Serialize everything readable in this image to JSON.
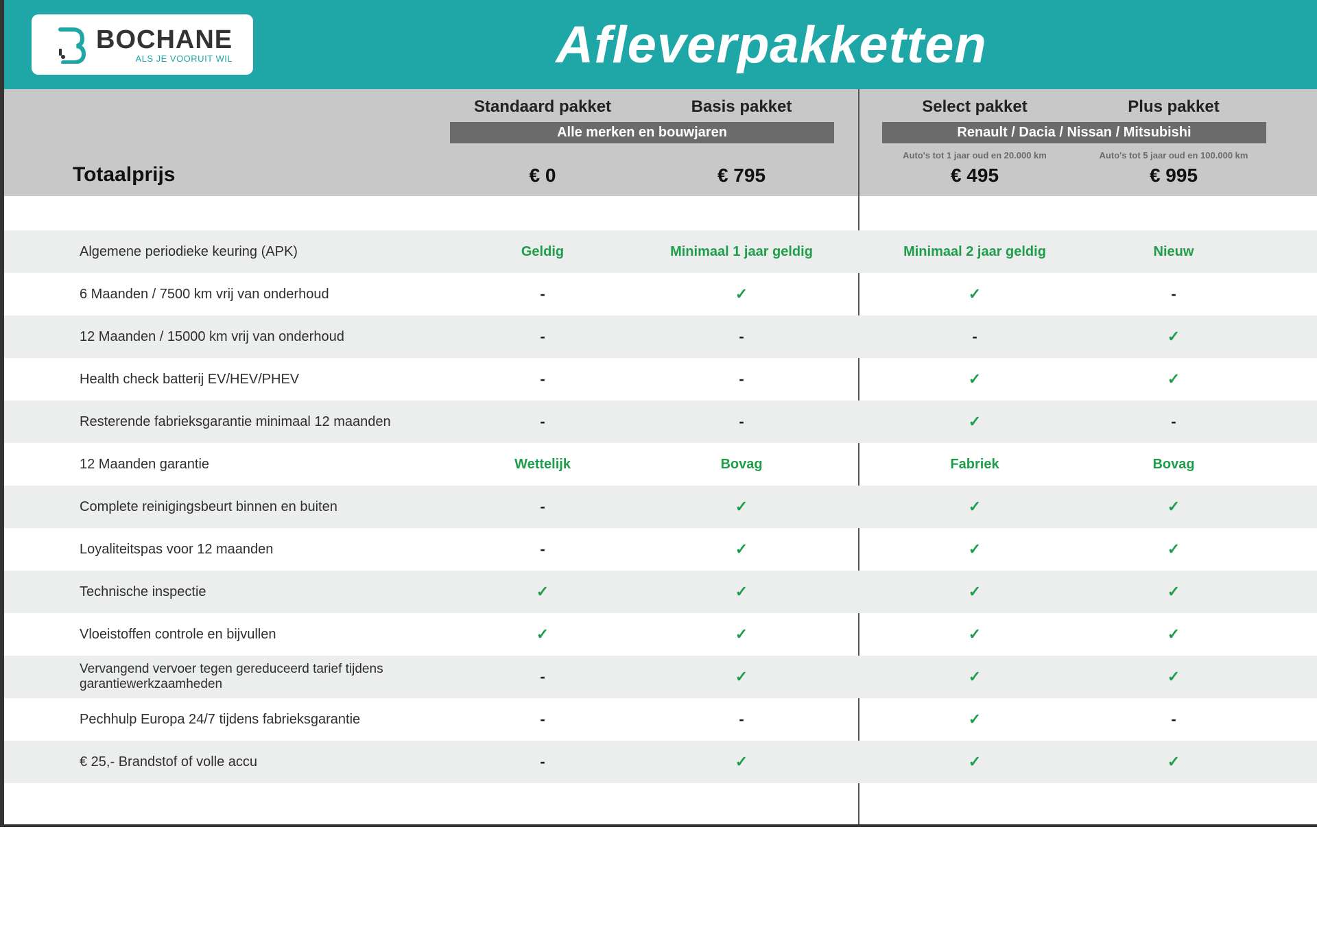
{
  "brand": {
    "name": "BOCHANE",
    "tagline": "ALS JE VOORUIT WIL",
    "accent_color": "#1fa6a6"
  },
  "title": "Afleverpakketten",
  "header_bg": "#1fa6a6",
  "totals_label": "Totaalprijs",
  "columns": [
    {
      "name": "Standaard pakket",
      "price": "€ 0",
      "group": "a",
      "age_note": ""
    },
    {
      "name": "Basis pakket",
      "price": "€ 795",
      "group": "a",
      "age_note": ""
    },
    {
      "name": "Select pakket",
      "price": "€ 495",
      "group": "b",
      "age_note": "Auto's tot 1 jaar oud en 20.000 km"
    },
    {
      "name": "Plus pakket",
      "price": "€ 995",
      "group": "b",
      "age_note": "Auto's tot 5 jaar oud en 100.000 km"
    }
  ],
  "group_a_sub": "Alle merken en bouwjaren",
  "group_b_sub": "Renault / Dacia / Nissan / Mitsubishi",
  "check_color": "#1e9e4a",
  "shade_color": "#eceded",
  "rows": [
    {
      "label": "Algemene periodieke keuring (APK)",
      "shade": true,
      "cells": [
        {
          "t": "text",
          "v": "Geldig"
        },
        {
          "t": "text",
          "v": "Minimaal 1 jaar geldig"
        },
        {
          "t": "text",
          "v": "Minimaal 2 jaar geldig"
        },
        {
          "t": "text",
          "v": "Nieuw"
        }
      ]
    },
    {
      "label": "6 Maanden / 7500 km vrij van onderhoud",
      "shade": false,
      "cells": [
        {
          "t": "dash"
        },
        {
          "t": "check"
        },
        {
          "t": "check"
        },
        {
          "t": "dash"
        }
      ]
    },
    {
      "label": "12 Maanden / 15000 km vrij van onderhoud",
      "shade": true,
      "cells": [
        {
          "t": "dash"
        },
        {
          "t": "dash"
        },
        {
          "t": "dash"
        },
        {
          "t": "check"
        }
      ]
    },
    {
      "label": "Health check batterij EV/HEV/PHEV",
      "shade": false,
      "cells": [
        {
          "t": "dash"
        },
        {
          "t": "dash"
        },
        {
          "t": "check"
        },
        {
          "t": "check"
        }
      ]
    },
    {
      "label": "Resterende fabrieksgarantie minimaal 12 maanden",
      "shade": true,
      "cells": [
        {
          "t": "dash"
        },
        {
          "t": "dash"
        },
        {
          "t": "check"
        },
        {
          "t": "dash"
        }
      ]
    },
    {
      "label": "12 Maanden  garantie",
      "shade": false,
      "cells": [
        {
          "t": "text",
          "v": "Wettelijk"
        },
        {
          "t": "text",
          "v": "Bovag"
        },
        {
          "t": "text",
          "v": "Fabriek"
        },
        {
          "t": "text",
          "v": "Bovag"
        }
      ]
    },
    {
      "label": "Complete reinigingsbeurt binnen en buiten",
      "shade": true,
      "cells": [
        {
          "t": "dash"
        },
        {
          "t": "check"
        },
        {
          "t": "check"
        },
        {
          "t": "check"
        }
      ]
    },
    {
      "label": "Loyaliteitspas voor 12 maanden",
      "shade": false,
      "cells": [
        {
          "t": "dash"
        },
        {
          "t": "check"
        },
        {
          "t": "check"
        },
        {
          "t": "check"
        }
      ]
    },
    {
      "label": "Technische inspectie",
      "shade": true,
      "cells": [
        {
          "t": "check"
        },
        {
          "t": "check"
        },
        {
          "t": "check"
        },
        {
          "t": "check"
        }
      ]
    },
    {
      "label": "Vloeistoffen controle en bijvullen",
      "shade": false,
      "cells": [
        {
          "t": "check"
        },
        {
          "t": "check"
        },
        {
          "t": "check"
        },
        {
          "t": "check"
        }
      ]
    },
    {
      "label": "Vervangend vervoer tegen gereduceerd tarief tijdens garantiewerkzaamheden",
      "shade": true,
      "twoline": true,
      "cells": [
        {
          "t": "dash"
        },
        {
          "t": "check"
        },
        {
          "t": "check"
        },
        {
          "t": "check"
        }
      ]
    },
    {
      "label": "Pechhulp Europa 24/7 tijdens fabrieksgarantie",
      "shade": false,
      "cells": [
        {
          "t": "dash"
        },
        {
          "t": "dash"
        },
        {
          "t": "check"
        },
        {
          "t": "dash"
        }
      ]
    },
    {
      "label": "€ 25,- Brandstof of  volle accu",
      "shade": true,
      "cells": [
        {
          "t": "dash"
        },
        {
          "t": "check"
        },
        {
          "t": "check"
        },
        {
          "t": "check"
        }
      ]
    }
  ]
}
